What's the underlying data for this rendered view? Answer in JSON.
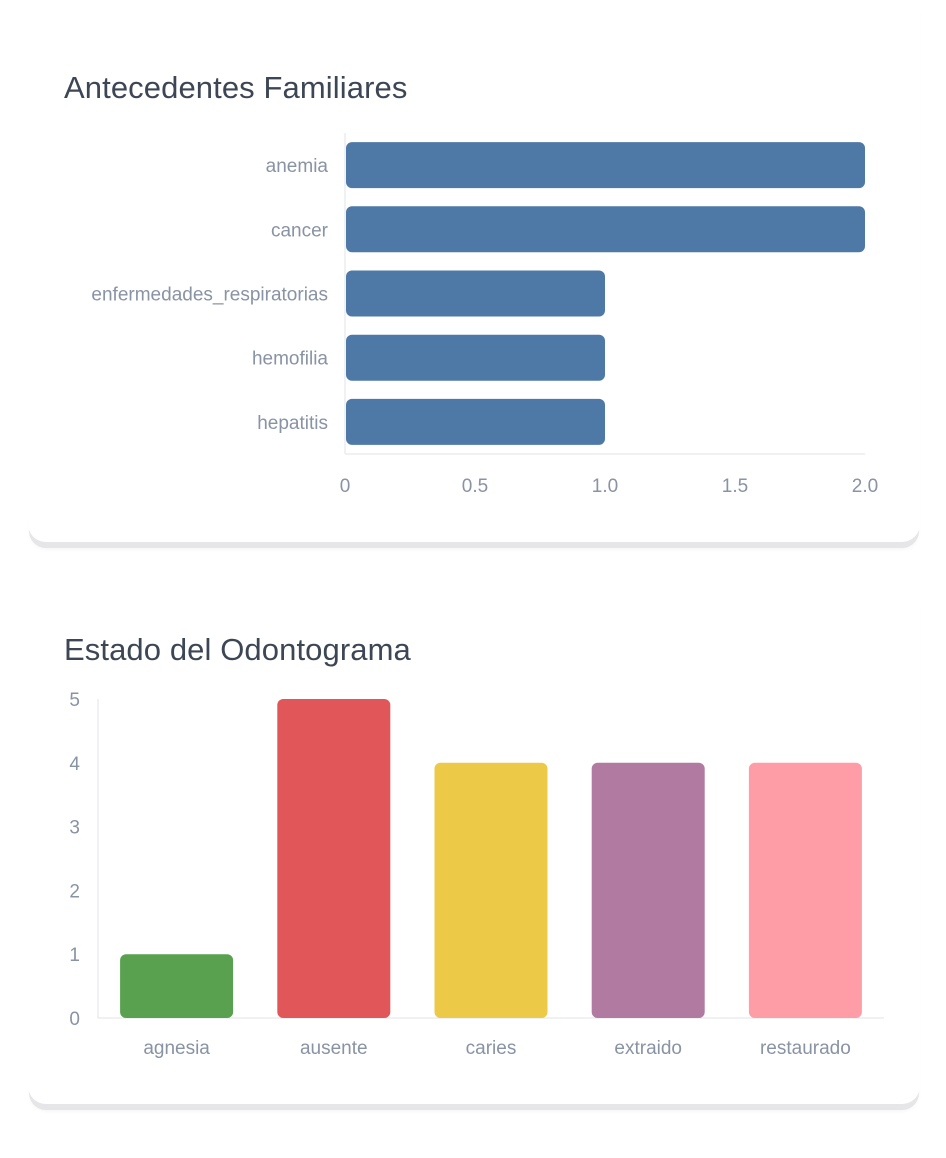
{
  "chart_data": [
    {
      "type": "bar",
      "orientation": "horizontal",
      "title": "Antecedentes Familiares",
      "categories": [
        "anemia",
        "cancer",
        "enfermedades_respiratorias",
        "hemofilia",
        "hepatitis"
      ],
      "values": [
        2,
        2,
        1,
        1,
        1
      ],
      "xlim": [
        0,
        2
      ],
      "xticks": [
        "0",
        "0.5",
        "1.0",
        "1.5",
        "2.0"
      ],
      "grid": false,
      "color": "#4e79a7"
    },
    {
      "type": "bar",
      "orientation": "vertical",
      "title": "Estado del Odontograma",
      "categories": [
        "agnesia",
        "ausente",
        "caries",
        "extraido",
        "restaurado"
      ],
      "values": [
        1,
        5,
        4,
        4,
        4
      ],
      "ylim": [
        0,
        5
      ],
      "yticks": [
        "0",
        "1",
        "2",
        "3",
        "4",
        "5"
      ],
      "grid": false,
      "colors": [
        "#59a14f",
        "#e15759",
        "#edc948",
        "#b07aa1",
        "#ff9da7"
      ]
    }
  ]
}
